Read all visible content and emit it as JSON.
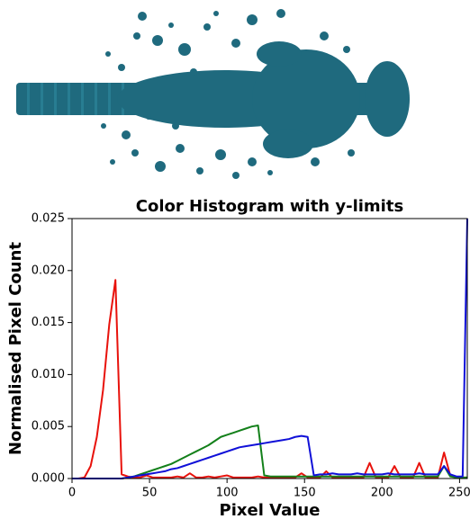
{
  "chart_data": {
    "type": "line",
    "title": "Color Histogram with y-limits",
    "x_label": "Pixel Value",
    "y_label": "Normalised Pixel Count",
    "x": [
      0,
      4,
      8,
      12,
      16,
      20,
      24,
      28,
      32,
      36,
      40,
      44,
      48,
      52,
      56,
      60,
      64,
      68,
      72,
      76,
      80,
      84,
      88,
      92,
      96,
      100,
      104,
      108,
      112,
      116,
      120,
      124,
      128,
      132,
      136,
      140,
      144,
      148,
      152,
      156,
      160,
      164,
      168,
      172,
      176,
      180,
      184,
      188,
      192,
      196,
      200,
      204,
      208,
      212,
      216,
      220,
      224,
      228,
      232,
      236,
      240,
      244,
      248,
      252,
      255
    ],
    "series": [
      {
        "color": "#e8120c",
        "values": [
          0,
          0,
          0.0001,
          0.0012,
          0.004,
          0.0085,
          0.0148,
          0.0191,
          0.0004,
          0.0002,
          0.0001,
          0.0001,
          0.0003,
          0.0001,
          0.0001,
          0.0001,
          0.0001,
          0.0002,
          0.0001,
          0.0005,
          0.0001,
          0.0001,
          0.0002,
          0.0001,
          0.0002,
          0.0003,
          0.0001,
          0.0001,
          0.0001,
          0.0001,
          0.0002,
          0.0001,
          0.0001,
          0.0001,
          0.0001,
          0.0001,
          0.0001,
          0.0005,
          0.0001,
          0.0001,
          0.0001,
          0.0007,
          0.0001,
          0.0001,
          0.0001,
          0.0001,
          0.0001,
          0.0001,
          0.0015,
          0.0001,
          0.0001,
          0.0001,
          0.0012,
          0.0001,
          0.0001,
          0.0001,
          0.0015,
          0.0001,
          0.0001,
          0.0001,
          0.0025,
          0.0003,
          0.0001,
          0.0001,
          0.0001
        ]
      },
      {
        "color": "#13801a",
        "values": [
          0,
          0,
          0,
          0,
          0,
          0,
          0,
          0,
          0,
          0.0001,
          0.0002,
          0.0004,
          0.0006,
          0.0008,
          0.001,
          0.0012,
          0.0014,
          0.0017,
          0.002,
          0.0023,
          0.0026,
          0.0029,
          0.0032,
          0.0036,
          0.004,
          0.0042,
          0.0044,
          0.0046,
          0.0048,
          0.005,
          0.0051,
          0.0003,
          0.0002,
          0.0002,
          0.0002,
          0.0002,
          0.0002,
          0.0002,
          0.0002,
          0.0002,
          0.0002,
          0.0002,
          0.0002,
          0.0002,
          0.0002,
          0.0002,
          0.0002,
          0.0002,
          0.0002,
          0.0002,
          0.0002,
          0.0002,
          0.0002,
          0.0002,
          0.0002,
          0.0002,
          0.0002,
          0.0002,
          0.0002,
          0.0002,
          0.0012,
          0.0002,
          0.0001,
          0.0001,
          0.0001
        ]
      },
      {
        "color": "#1010d8",
        "values": [
          0,
          0,
          0,
          0,
          0,
          0,
          0,
          0,
          0,
          0.0001,
          0.0002,
          0.0003,
          0.0004,
          0.0005,
          0.0006,
          0.0007,
          0.0009,
          0.001,
          0.0012,
          0.0014,
          0.0016,
          0.0018,
          0.002,
          0.0022,
          0.0024,
          0.0026,
          0.0028,
          0.003,
          0.0031,
          0.0032,
          0.0033,
          0.0034,
          0.0035,
          0.0036,
          0.0037,
          0.0038,
          0.004,
          0.0041,
          0.004,
          0.0003,
          0.0004,
          0.0004,
          0.0005,
          0.0004,
          0.0004,
          0.0004,
          0.0005,
          0.0004,
          0.0004,
          0.0004,
          0.0004,
          0.0005,
          0.0004,
          0.0004,
          0.0004,
          0.0004,
          0.0005,
          0.0004,
          0.0004,
          0.0004,
          0.0012,
          0.0004,
          0.0002,
          0.0002,
          0.025
        ]
      }
    ],
    "xlim": [
      0,
      255
    ],
    "ylim": [
      0,
      0.025
    ],
    "xticks": [
      0,
      50,
      100,
      150,
      200,
      250
    ],
    "yticks": [
      {
        "value": 0,
        "label": "0.000"
      },
      {
        "value": 0.005,
        "label": "0.005"
      },
      {
        "value": 0.01,
        "label": "0.010"
      },
      {
        "value": 0.015,
        "label": "0.015"
      },
      {
        "value": 0.02,
        "label": "0.020"
      },
      {
        "value": 0.025,
        "label": "0.025"
      }
    ]
  }
}
